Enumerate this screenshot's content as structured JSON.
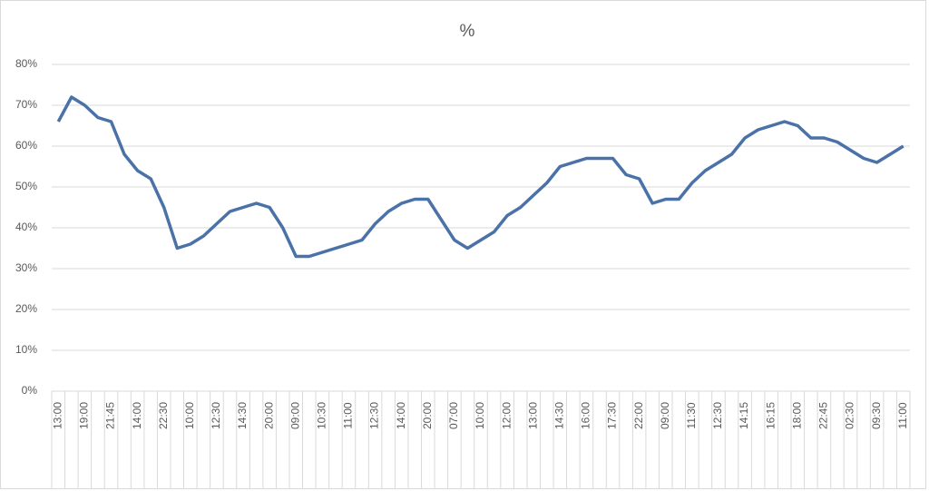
{
  "chart_data": {
    "type": "line",
    "title": "%",
    "categories": [
      "13:00",
      null,
      "19:00",
      null,
      "21:45",
      null,
      "14:00",
      null,
      "22:30",
      null,
      "10:00",
      null,
      "12:30",
      null,
      "14:30",
      null,
      "20:00",
      null,
      "09:00",
      null,
      "10:30",
      null,
      "11:00",
      null,
      "12:30",
      null,
      "14:00",
      null,
      "20:00",
      null,
      "07:00",
      null,
      "10:00",
      null,
      "12:00",
      null,
      "13:00",
      null,
      "14:30",
      null,
      "16:00",
      null,
      "17:30",
      null,
      "22:00",
      null,
      "09:00",
      null,
      "11:30",
      null,
      "12:30",
      null,
      "14:15",
      null,
      "16:15",
      null,
      "18:00",
      null,
      "22:45",
      null,
      "02:30",
      null,
      "09:30",
      null,
      "11:00"
    ],
    "series": [
      {
        "name": "%",
        "color": "#4a72a8",
        "values": [
          66,
          72,
          70,
          67,
          66,
          58,
          54,
          52,
          45,
          35,
          36,
          38,
          41,
          44,
          45,
          46,
          45,
          40,
          33,
          33,
          34,
          35,
          36,
          37,
          41,
          44,
          46,
          47,
          47,
          42,
          37,
          35,
          37,
          39,
          43,
          45,
          48,
          51,
          55,
          56,
          57,
          57,
          57,
          53,
          52,
          46,
          47,
          47,
          51,
          54,
          56,
          58,
          62,
          64,
          65,
          66,
          65,
          62,
          62,
          61,
          59,
          57,
          56,
          58,
          60
        ]
      }
    ],
    "ylim": [
      0,
      80
    ],
    "yticks": [
      {
        "value": 0,
        "label": "0%"
      },
      {
        "value": 10,
        "label": "10%"
      },
      {
        "value": 20,
        "label": "20%"
      },
      {
        "value": 30,
        "label": "30%"
      },
      {
        "value": 40,
        "label": "40%"
      },
      {
        "value": 50,
        "label": "50%"
      },
      {
        "value": 60,
        "label": "60%"
      },
      {
        "value": 70,
        "label": "70%"
      },
      {
        "value": 80,
        "label": "80%"
      }
    ],
    "grid": true
  }
}
